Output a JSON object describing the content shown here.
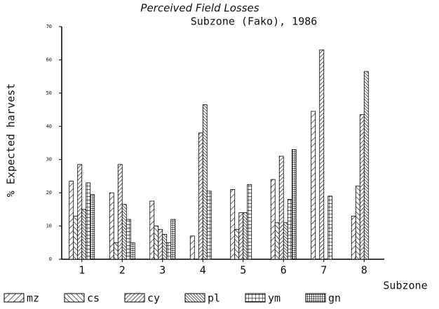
{
  "chart_data": {
    "type": "bar",
    "title": "Perceived Field Losses",
    "subtitle": "Subzone (Fako), 1986",
    "y_label": "% Expected harvest",
    "x_label": "Subzone",
    "categories": [
      "1",
      "2",
      "3",
      "4",
      "5",
      "6",
      "7",
      "8"
    ],
    "series": [
      {
        "name": "mz",
        "color": "#000000",
        "values": [
          23.5,
          20,
          17.5,
          7,
          21,
          24,
          44.5,
          13
        ]
      },
      {
        "name": "cs",
        "color": "#000000",
        "values": [
          13,
          5,
          10,
          0,
          9,
          11,
          0,
          22
        ]
      },
      {
        "name": "cy",
        "color": "#000000",
        "values": [
          28.5,
          28.5,
          9,
          38,
          14,
          31,
          63,
          43.5
        ]
      },
      {
        "name": "pl",
        "color": "#000000",
        "values": [
          15,
          16.5,
          7.5,
          46.5,
          14,
          11,
          0,
          56.5
        ]
      },
      {
        "name": "ym",
        "color": "#000000",
        "values": [
          23,
          12,
          5,
          20.5,
          22.5,
          18,
          19,
          0
        ]
      },
      {
        "name": "gn",
        "color": "#000000",
        "values": [
          19.5,
          5,
          12,
          0,
          0,
          33,
          0,
          0
        ]
      }
    ],
    "ylim": [
      0,
      70
    ],
    "yticks": [
      0,
      10,
      20,
      30,
      40,
      50,
      60,
      70
    ],
    "grid": false
  }
}
